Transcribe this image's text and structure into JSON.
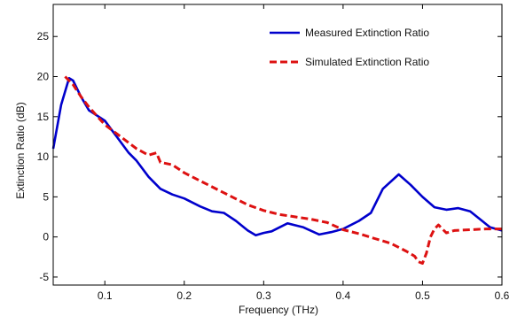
{
  "chart_data": {
    "type": "line",
    "title": "",
    "xlabel": "Frequency (THz)",
    "ylabel": "Extinction Ratio (dB)",
    "xlim": [
      0.035,
      0.6
    ],
    "ylim": [
      -6,
      29
    ],
    "x_ticks": [
      0.1,
      0.2,
      0.3,
      0.4,
      0.5,
      0.6
    ],
    "y_ticks": [
      -5,
      0,
      5,
      10,
      15,
      20,
      25
    ],
    "grid": false,
    "legend_position": "top-right",
    "series": [
      {
        "name": "Measured Extinction Ratio",
        "color": "#0000cc",
        "style": "solid",
        "x": [
          0.035,
          0.045,
          0.055,
          0.06,
          0.07,
          0.08,
          0.1,
          0.115,
          0.13,
          0.14,
          0.155,
          0.17,
          0.185,
          0.2,
          0.22,
          0.235,
          0.25,
          0.265,
          0.28,
          0.29,
          0.3,
          0.31,
          0.32,
          0.33,
          0.35,
          0.37,
          0.385,
          0.4,
          0.42,
          0.435,
          0.45,
          0.47,
          0.485,
          0.5,
          0.515,
          0.53,
          0.545,
          0.56,
          0.575,
          0.585,
          0.6
        ],
        "y": [
          11.0,
          16.5,
          19.8,
          19.5,
          17.5,
          15.8,
          14.5,
          12.5,
          10.5,
          9.5,
          7.5,
          6.0,
          5.3,
          4.8,
          3.8,
          3.2,
          3.0,
          2.0,
          0.8,
          0.2,
          0.5,
          0.7,
          1.2,
          1.7,
          1.2,
          0.3,
          0.6,
          1.0,
          2.0,
          3.0,
          6.0,
          7.8,
          6.5,
          5.0,
          3.7,
          3.4,
          3.6,
          3.2,
          2.0,
          1.2,
          0.8
        ]
      },
      {
        "name": "Simulated Extinction Ratio",
        "color": "#dd1111",
        "style": "dashed",
        "x": [
          0.05,
          0.06,
          0.07,
          0.08,
          0.1,
          0.12,
          0.14,
          0.155,
          0.165,
          0.17,
          0.185,
          0.2,
          0.22,
          0.25,
          0.28,
          0.3,
          0.32,
          0.34,
          0.36,
          0.38,
          0.4,
          0.42,
          0.44,
          0.46,
          0.48,
          0.49,
          0.495,
          0.5,
          0.505,
          0.51,
          0.515,
          0.52,
          0.525,
          0.53,
          0.54,
          0.56,
          0.58,
          0.6
        ],
        "y": [
          20.0,
          19.0,
          17.5,
          16.2,
          14.0,
          12.5,
          11.0,
          10.2,
          10.5,
          9.3,
          9.0,
          8.0,
          7.0,
          5.5,
          4.0,
          3.3,
          2.8,
          2.5,
          2.2,
          1.8,
          0.9,
          0.4,
          -0.2,
          -0.8,
          -1.8,
          -2.4,
          -3.1,
          -3.3,
          -2.0,
          0.0,
          1.0,
          1.5,
          1.0,
          0.5,
          0.8,
          0.9,
          1.0,
          1.0
        ]
      }
    ]
  }
}
